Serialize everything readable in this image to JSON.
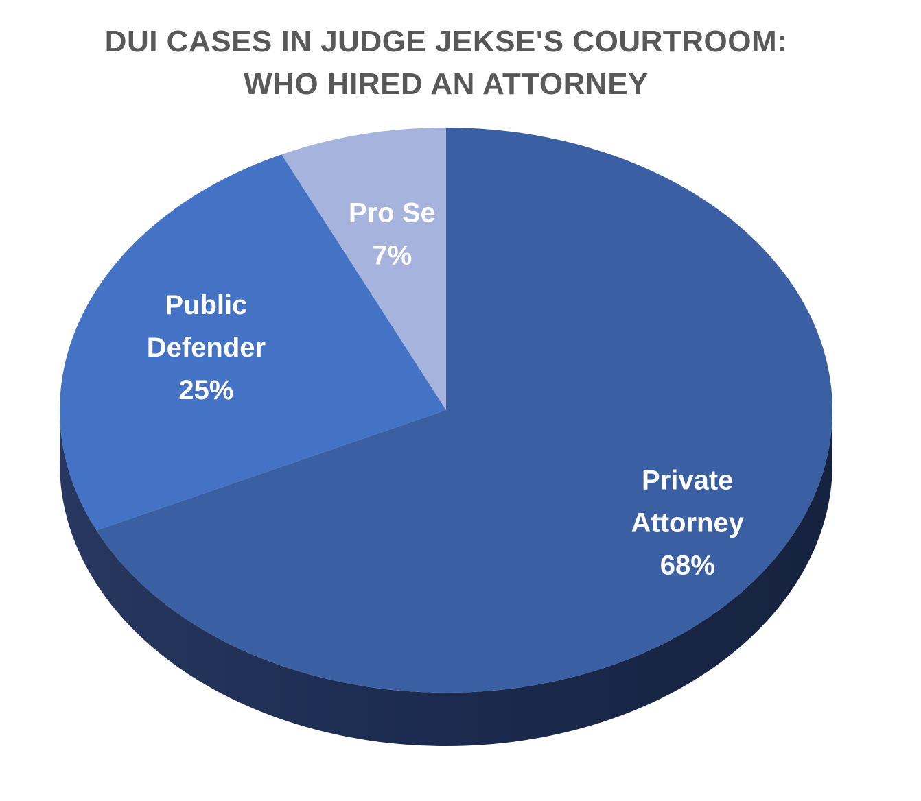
{
  "chart_data": {
    "type": "pie",
    "title": "DUI CASES IN JUDGE JEKSE'S COURTROOM: WHO HIRED AN ATTORNEY",
    "title_lines": [
      "DUI CASES IN JUDGE JEKSE'S COURTROOM:",
      "WHO HIRED AN ATTORNEY"
    ],
    "style": "3d",
    "slices": [
      {
        "label": "Private Attorney",
        "label_lines": [
          "Private",
          "Attorney"
        ],
        "value": 68,
        "value_label": "68%",
        "color": "#3A5FA3",
        "side_color": "#1E2E55"
      },
      {
        "label": "Public Defender",
        "label_lines": [
          "Public",
          "Defender"
        ],
        "value": 25,
        "value_label": "25%",
        "color": "#4472C4",
        "side_color": "#2A4680"
      },
      {
        "label": "Pro Se",
        "label_lines": [
          "Pro Se"
        ],
        "value": 7,
        "value_label": "7%",
        "color": "#A6B4DD",
        "side_color": "#7D8CB8"
      }
    ],
    "legend": "none",
    "data_labels": "inside"
  },
  "colors": {
    "title": "#595959",
    "label_text": "#FFFFFF",
    "background": "#FFFFFF"
  }
}
